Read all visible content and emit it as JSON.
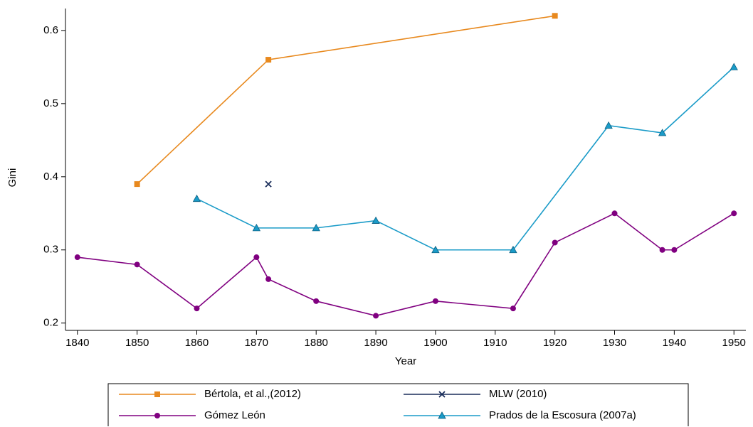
{
  "chart_data": {
    "type": "line",
    "x_label": "Year",
    "y_label": "Gini",
    "xlim": [
      1838,
      1952
    ],
    "ylim": [
      0.19,
      0.63
    ],
    "xticks": [
      1840,
      1850,
      1860,
      1870,
      1880,
      1890,
      1900,
      1910,
      1920,
      1930,
      1940,
      1950
    ],
    "yticks": [
      0.2,
      0.3,
      0.4,
      0.5,
      0.6
    ],
    "grid": false,
    "legend": "bottom",
    "series": [
      {
        "name": "Bértola, et al.,(2012)",
        "color": "#e8891e",
        "marker": "square",
        "x": [
          1850,
          1872,
          1920
        ],
        "values": [
          0.39,
          0.56,
          0.62
        ]
      },
      {
        "name": "MLW (2010)",
        "color": "#1a2d5a",
        "marker": "x",
        "x": [
          1872
        ],
        "values": [
          0.39
        ]
      },
      {
        "name": "Gómez León",
        "color": "#800080",
        "marker": "circle",
        "x": [
          1840,
          1850,
          1860,
          1870,
          1872,
          1880,
          1890,
          1900,
          1913,
          1920,
          1930,
          1938,
          1940,
          1950
        ],
        "values": [
          0.29,
          0.28,
          0.22,
          0.29,
          0.26,
          0.23,
          0.21,
          0.23,
          0.22,
          0.31,
          0.35,
          0.3,
          0.3,
          0.35
        ]
      },
      {
        "name": "Prados de la Escosura (2007a)",
        "color": "#1a9bc8",
        "marker": "triangle",
        "x": [
          1860,
          1870,
          1880,
          1890,
          1900,
          1913,
          1929,
          1938,
          1950
        ],
        "values": [
          0.37,
          0.33,
          0.33,
          0.34,
          0.3,
          0.3,
          0.47,
          0.46,
          0.55
        ]
      }
    ]
  }
}
